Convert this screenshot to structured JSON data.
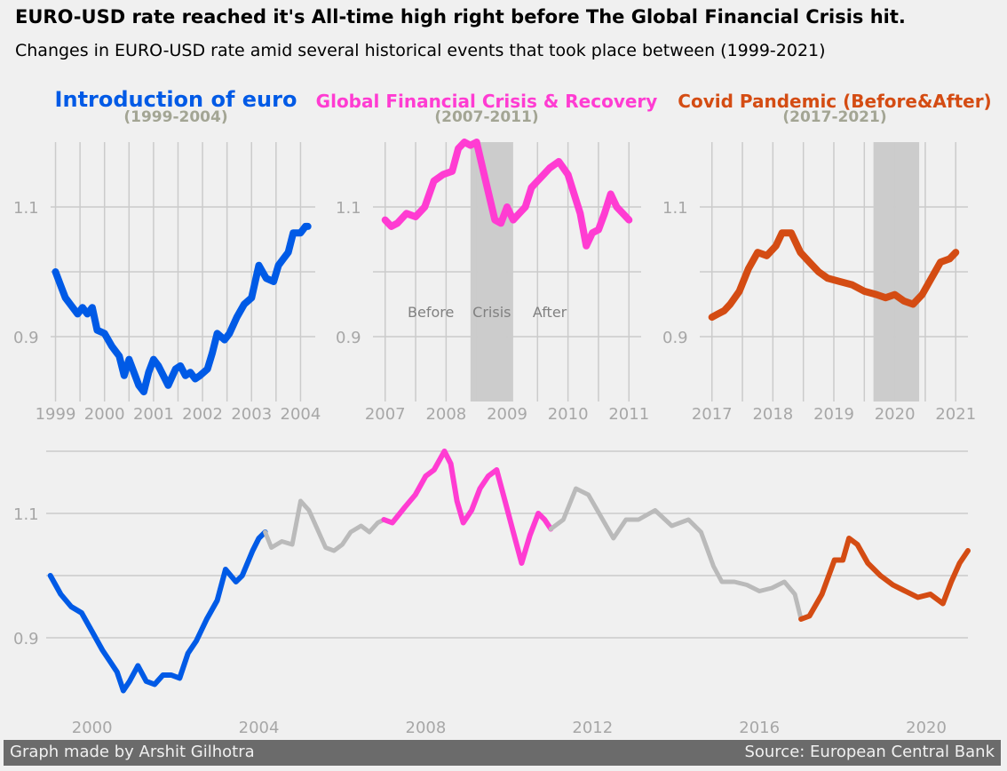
{
  "title": "EURO-USD rate reached it's All-time high right before The Global Financial Crisis hit.",
  "subtitle": "Changes in EURO-USD rate amid several historical events that took place between (1999-2021)",
  "footer": {
    "left": "Graph made by Arshit Gilhotra",
    "right": "Source: European Central Bank"
  },
  "colors": {
    "euro": "#005ae6",
    "crisis": "#ff3cd2",
    "covid": "#d44c13",
    "other": "#bababa",
    "background": "#f0f0f0",
    "grid": "#cbcbcb",
    "tick": "#a7a7a7",
    "shade": "#c6c6c6",
    "years_label": "#a3a594",
    "annotation": "#808080"
  },
  "panels": [
    {
      "id": "euro",
      "title": "Introduction of euro",
      "years": "(1999-2004)"
    },
    {
      "id": "crisis",
      "title": "Global Financial Crisis & Recovery",
      "years": "(2007-2011)"
    },
    {
      "id": "covid",
      "title": "Covid Pandemic (Before&After)",
      "years": "(2017-2021)"
    }
  ],
  "crisis_annotations": [
    "Before",
    "Crisis",
    "After"
  ],
  "chart_data": [
    {
      "type": "line",
      "panel": "euro",
      "xlim": [
        1998.9,
        2004.3
      ],
      "ylim": [
        0.8,
        1.2
      ],
      "yticks": [
        0.9,
        1.1
      ],
      "ytick_labels": [
        "0.9",
        "1.1"
      ],
      "xticks": [
        1999,
        2000,
        2001,
        2002,
        2003,
        2004
      ],
      "xtick_labels": [
        "1999",
        "2000",
        "2001",
        "2002",
        "2003",
        "2004"
      ],
      "grid": true,
      "series": [
        {
          "x": [
            1999.0,
            1999.1,
            1999.2,
            1999.3,
            1999.45,
            1999.55,
            1999.65,
            1999.75,
            1999.85,
            2000.0,
            2000.15,
            2000.3,
            2000.4,
            2000.5,
            2000.6,
            2000.7,
            2000.8,
            2000.9,
            2001.0,
            2001.1,
            2001.2,
            2001.3,
            2001.45,
            2001.55,
            2001.65,
            2001.75,
            2001.85,
            2001.95,
            2002.1,
            2002.2,
            2002.3,
            2002.45,
            2002.55,
            2002.7,
            2002.85,
            2003.0,
            2003.15,
            2003.3,
            2003.45,
            2003.55,
            2003.65,
            2003.75,
            2003.85,
            2004.0,
            2004.1,
            2004.15
          ],
          "y": [
            1.0,
            0.98,
            0.96,
            0.95,
            0.935,
            0.945,
            0.935,
            0.945,
            0.91,
            0.905,
            0.885,
            0.87,
            0.84,
            0.865,
            0.845,
            0.825,
            0.815,
            0.845,
            0.865,
            0.855,
            0.84,
            0.825,
            0.85,
            0.855,
            0.84,
            0.845,
            0.835,
            0.84,
            0.85,
            0.875,
            0.905,
            0.895,
            0.905,
            0.93,
            0.95,
            0.96,
            1.01,
            0.99,
            0.985,
            1.01,
            1.02,
            1.03,
            1.06,
            1.06,
            1.07,
            1.07
          ]
        }
      ]
    },
    {
      "type": "line",
      "panel": "crisis",
      "xlim": [
        2006.8,
        2011.2
      ],
      "ylim": [
        0.8,
        1.2
      ],
      "yticks": [
        0.9,
        1.1
      ],
      "ytick_labels": [
        "0.9",
        "1.1"
      ],
      "xticks": [
        2007,
        2008,
        2009,
        2010,
        2011
      ],
      "xtick_labels": [
        "2007",
        "2008",
        "2009",
        "2010",
        "2011"
      ],
      "grid": true,
      "shaded_region": [
        2008.4,
        2009.1
      ],
      "series": [
        {
          "x": [
            2007.0,
            2007.1,
            2007.2,
            2007.35,
            2007.5,
            2007.65,
            2007.8,
            2007.95,
            2008.1,
            2008.2,
            2008.3,
            2008.4,
            2008.5,
            2008.6,
            2008.7,
            2008.8,
            2008.9,
            2009.0,
            2009.1,
            2009.2,
            2009.3,
            2009.4,
            2009.5,
            2009.6,
            2009.7,
            2009.85,
            2010.0,
            2010.1,
            2010.2,
            2010.3,
            2010.4,
            2010.5,
            2010.6,
            2010.7,
            2010.8,
            2010.9,
            2011.0
          ],
          "y": [
            1.08,
            1.07,
            1.075,
            1.09,
            1.085,
            1.1,
            1.14,
            1.15,
            1.155,
            1.19,
            1.2,
            1.195,
            1.2,
            1.16,
            1.12,
            1.08,
            1.075,
            1.1,
            1.08,
            1.09,
            1.1,
            1.13,
            1.14,
            1.15,
            1.16,
            1.17,
            1.15,
            1.12,
            1.09,
            1.04,
            1.06,
            1.065,
            1.09,
            1.12,
            1.1,
            1.09,
            1.08
          ]
        }
      ]
    },
    {
      "type": "line",
      "panel": "covid",
      "xlim": [
        2016.8,
        2021.2
      ],
      "ylim": [
        0.8,
        1.2
      ],
      "yticks": [
        0.9,
        1.1
      ],
      "ytick_labels": [
        "0.9",
        "1.1"
      ],
      "xticks": [
        2017,
        2018,
        2019,
        2020,
        2021
      ],
      "xtick_labels": [
        "2017",
        "2018",
        "2019",
        "2020",
        "2021"
      ],
      "grid": true,
      "shaded_region": [
        2019.65,
        2020.4
      ],
      "series": [
        {
          "x": [
            2017.0,
            2017.1,
            2017.2,
            2017.3,
            2017.45,
            2017.6,
            2017.75,
            2017.9,
            2018.05,
            2018.15,
            2018.3,
            2018.45,
            2018.6,
            2018.75,
            2018.9,
            2019.1,
            2019.3,
            2019.5,
            2019.7,
            2019.85,
            2020.0,
            2020.15,
            2020.3,
            2020.45,
            2020.6,
            2020.75,
            2020.9,
            2021.0
          ],
          "y": [
            0.93,
            0.935,
            0.94,
            0.95,
            0.97,
            1.005,
            1.03,
            1.025,
            1.04,
            1.06,
            1.06,
            1.03,
            1.015,
            1.0,
            0.99,
            0.985,
            0.98,
            0.97,
            0.965,
            0.96,
            0.965,
            0.955,
            0.95,
            0.965,
            0.99,
            1.015,
            1.02,
            1.03
          ]
        }
      ]
    },
    {
      "type": "line",
      "panel": "full",
      "xlim": [
        1998.9,
        2021.0
      ],
      "ylim": [
        0.78,
        1.2
      ],
      "yticks": [
        0.9,
        1.1
      ],
      "ytick_labels": [
        "0.9",
        "1.1"
      ],
      "xticks": [
        2000,
        2004,
        2008,
        2012,
        2016,
        2020
      ],
      "xtick_labels": [
        "2000",
        "2004",
        "2008",
        "2012",
        "2016",
        "2020"
      ],
      "grid": true,
      "series": [
        {
          "segment": "euro",
          "x": [
            1999.0,
            1999.25,
            1999.5,
            1999.75,
            2000.0,
            2000.25,
            2000.45,
            2000.6,
            2000.75,
            2000.9,
            2001.1,
            2001.3,
            2001.5,
            2001.7,
            2001.9,
            2002.1,
            2002.3,
            2002.5,
            2002.75,
            2003.0,
            2003.2,
            2003.45,
            2003.6,
            2003.85,
            2004.0,
            2004.15
          ],
          "y": [
            1.0,
            0.97,
            0.95,
            0.94,
            0.91,
            0.88,
            0.86,
            0.845,
            0.815,
            0.83,
            0.855,
            0.83,
            0.825,
            0.84,
            0.84,
            0.835,
            0.875,
            0.895,
            0.93,
            0.96,
            1.01,
            0.99,
            1.0,
            1.04,
            1.06,
            1.07
          ]
        },
        {
          "segment": "other",
          "x": [
            2004.15,
            2004.3,
            2004.55,
            2004.8,
            2005.0,
            2005.2,
            2005.4,
            2005.6,
            2005.8,
            2006.0,
            2006.2,
            2006.45,
            2006.65,
            2006.85,
            2007.0
          ],
          "y": [
            1.07,
            1.045,
            1.055,
            1.05,
            1.12,
            1.105,
            1.075,
            1.045,
            1.04,
            1.05,
            1.07,
            1.08,
            1.07,
            1.085,
            1.09
          ]
        },
        {
          "segment": "crisis",
          "x": [
            2007.0,
            2007.2,
            2007.5,
            2007.75,
            2008.0,
            2008.2,
            2008.45,
            2008.6,
            2008.75,
            2008.9,
            2009.1,
            2009.3,
            2009.5,
            2009.7,
            2009.9,
            2010.1,
            2010.3,
            2010.5,
            2010.7,
            2010.85,
            2011.0
          ],
          "y": [
            1.09,
            1.085,
            1.11,
            1.13,
            1.16,
            1.17,
            1.2,
            1.18,
            1.12,
            1.085,
            1.105,
            1.14,
            1.16,
            1.17,
            1.12,
            1.07,
            1.02,
            1.065,
            1.1,
            1.09,
            1.075
          ]
        },
        {
          "segment": "other",
          "x": [
            2011.0,
            2011.3,
            2011.6,
            2011.9,
            2012.2,
            2012.5,
            2012.8,
            2013.1,
            2013.5,
            2013.9,
            2014.3,
            2014.6,
            2014.9,
            2015.1,
            2015.4,
            2015.7,
            2016.0,
            2016.3,
            2016.6,
            2016.85,
            2017.0
          ],
          "y": [
            1.075,
            1.09,
            1.14,
            1.13,
            1.095,
            1.06,
            1.09,
            1.09,
            1.105,
            1.08,
            1.09,
            1.07,
            1.015,
            0.99,
            0.99,
            0.985,
            0.975,
            0.98,
            0.99,
            0.97,
            0.93
          ]
        },
        {
          "segment": "covid",
          "x": [
            2017.0,
            2017.2,
            2017.5,
            2017.8,
            2018.0,
            2018.15,
            2018.35,
            2018.6,
            2018.9,
            2019.2,
            2019.5,
            2019.8,
            2020.1,
            2020.4,
            2020.6,
            2020.8,
            2021.0
          ],
          "y": [
            0.93,
            0.935,
            0.97,
            1.025,
            1.025,
            1.06,
            1.05,
            1.02,
            1.0,
            0.985,
            0.975,
            0.965,
            0.97,
            0.955,
            0.99,
            1.02,
            1.04
          ]
        }
      ]
    }
  ]
}
